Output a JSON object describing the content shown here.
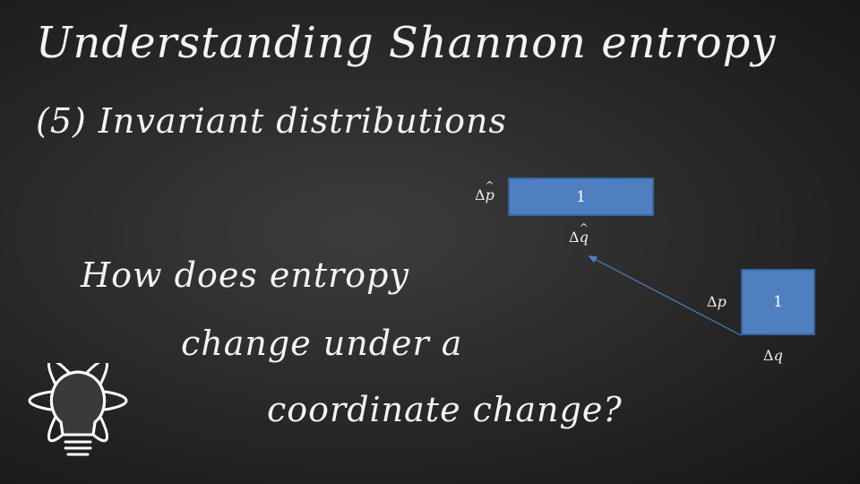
{
  "slide": {
    "title": "Understanding Shannon entropy",
    "subtitle": "(5) Invariant distributions",
    "question_lines": [
      "How does entropy",
      "change under a",
      "coordinate change?"
    ]
  },
  "diagram": {
    "box_top": {
      "value": "1",
      "width_label_symbol": "Δ",
      "width_label_var": "q",
      "width_label_hat": "^",
      "height_label_symbol": "Δ",
      "height_label_var": "p",
      "height_label_hat": "^"
    },
    "box_bottom": {
      "value": "1",
      "width_label_symbol": "Δ",
      "width_label_var": "q",
      "height_label_symbol": "Δ",
      "height_label_var": "p"
    },
    "colors": {
      "box_fill": "#4f7fbe",
      "box_border": "#38659c",
      "arrow": "#4f7fbe"
    }
  },
  "logo": {
    "icon": "atom-lightbulb-icon"
  }
}
